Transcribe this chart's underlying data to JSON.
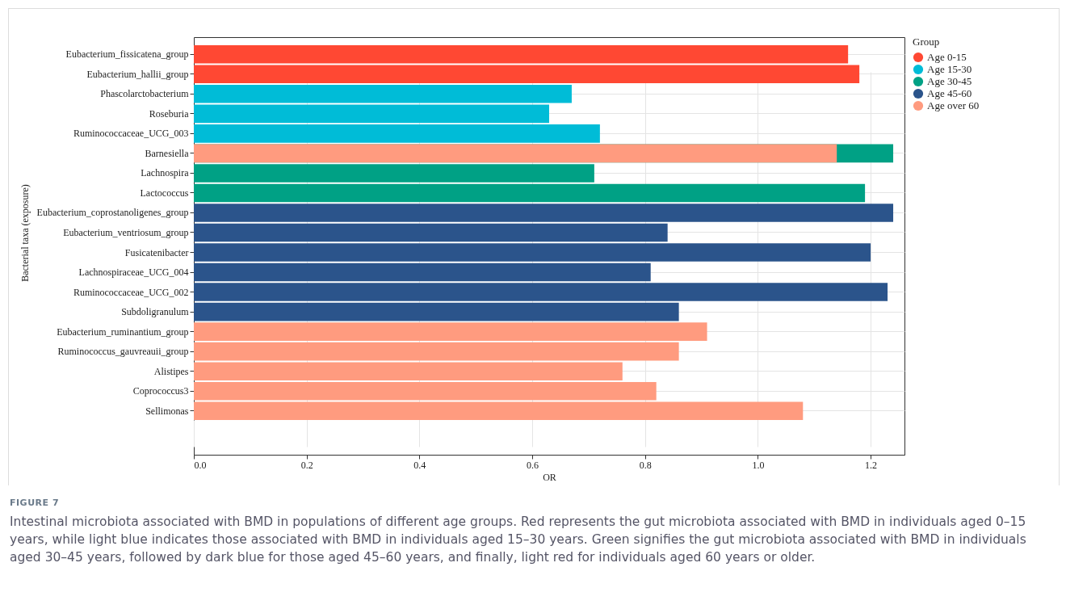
{
  "chart_data": {
    "type": "bar",
    "orientation": "horizontal",
    "xlabel": "OR",
    "ylabel": "Bacterial taxa (exposure)",
    "legend_title": "Group",
    "legend": "top right",
    "grid": true,
    "categories": [
      "Eubacterium_fissicatena_group",
      "Eubacterium_hallii_group",
      "Phascolarctobacterium",
      "Roseburia",
      "Ruminococcaceae_UCG_003",
      "Barnesiella",
      "Lachnospira",
      "Lactococcus",
      "Eubacterium_coprostanoligenes_group",
      "Eubacterium_ventriosum_group",
      "Fusicatenibacter",
      "Lachnospiraceae_UCG_004",
      "Ruminococcaceae_UCG_002",
      "Subdoligranulum",
      "Eubacterium_ruminantium_group",
      "Ruminococcus_gauvreauii_group",
      "Alistipes",
      "Coprococcus3",
      "Sellimonas"
    ],
    "series": [
      {
        "name": "Age 0-15",
        "color": "#ff4833",
        "values": [
          1.16,
          1.18,
          null,
          null,
          null,
          null,
          null,
          null,
          null,
          null,
          null,
          null,
          null,
          null,
          null,
          null,
          null,
          null,
          null
        ]
      },
      {
        "name": "Age 15-30",
        "color": "#00bcd7",
        "values": [
          null,
          null,
          0.67,
          0.63,
          0.72,
          null,
          null,
          null,
          null,
          null,
          null,
          null,
          null,
          null,
          null,
          null,
          null,
          null,
          null
        ]
      },
      {
        "name": "Age 30-45",
        "color": "#00a185",
        "values": [
          null,
          null,
          null,
          null,
          null,
          1.24,
          0.71,
          1.19,
          null,
          null,
          null,
          null,
          null,
          null,
          null,
          null,
          null,
          null,
          null
        ]
      },
      {
        "name": "Age 45-60",
        "color": "#2b548b",
        "values": [
          null,
          null,
          null,
          null,
          null,
          null,
          null,
          null,
          1.24,
          0.84,
          1.2,
          0.81,
          1.23,
          0.86,
          null,
          null,
          null,
          null,
          null
        ]
      },
      {
        "name": "Age over 60",
        "color": "#ff9b7f",
        "values": [
          null,
          null,
          null,
          null,
          null,
          1.14,
          null,
          null,
          null,
          null,
          null,
          null,
          null,
          null,
          0.91,
          0.86,
          0.76,
          0.82,
          1.08
        ]
      }
    ],
    "xlim": [
      0,
      1.26
    ],
    "xticks": [
      {
        "value": 0,
        "label": "0.0"
      },
      0.2,
      0.4,
      0.6,
      0.8,
      {
        "value": 1,
        "label": "1.0"
      },
      1.2
    ],
    "annotations": [
      "FIGURE 7",
      "Intestinal microbiota associated with BMD in populations of different age groups. Red represents the gut microbiota associated with BMD in individuals aged 0–15 years, while light blue indicates those associated with BMD in individuals aged 15–30 years. Green signifies the gut microbiota associated with BMD in individuals aged 30–45 years, followed by dark blue for those aged 45–60 years, and finally, light red for individuals aged 60 years or older."
    ]
  }
}
